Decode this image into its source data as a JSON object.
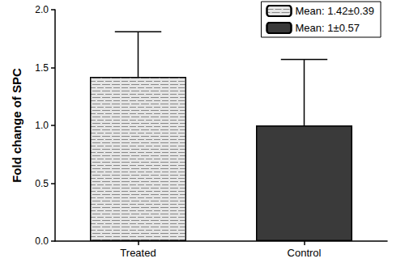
{
  "chart_data": {
    "type": "bar",
    "y_label": "Fold change of SPC",
    "categories": [
      "Treated",
      "Control"
    ],
    "series": [
      {
        "name": "Mean: 1.42±0.39",
        "color": "#e6e6e6",
        "values": [
          1.42,
          null
        ],
        "errors": [
          0.39,
          null
        ]
      },
      {
        "name": "Mean: 1±0.57",
        "color": "#3a3a3a",
        "values": [
          null,
          1.0
        ],
        "errors": [
          null,
          0.57
        ]
      }
    ],
    "ylim": [
      0,
      2
    ],
    "yticks": [
      {
        "value": 0,
        "label": "0.0"
      },
      0.5,
      {
        "value": 1,
        "label": "1.0"
      },
      1.5,
      {
        "value": 2,
        "label": "2.0"
      }
    ],
    "grid": false,
    "legend": "upper right"
  }
}
